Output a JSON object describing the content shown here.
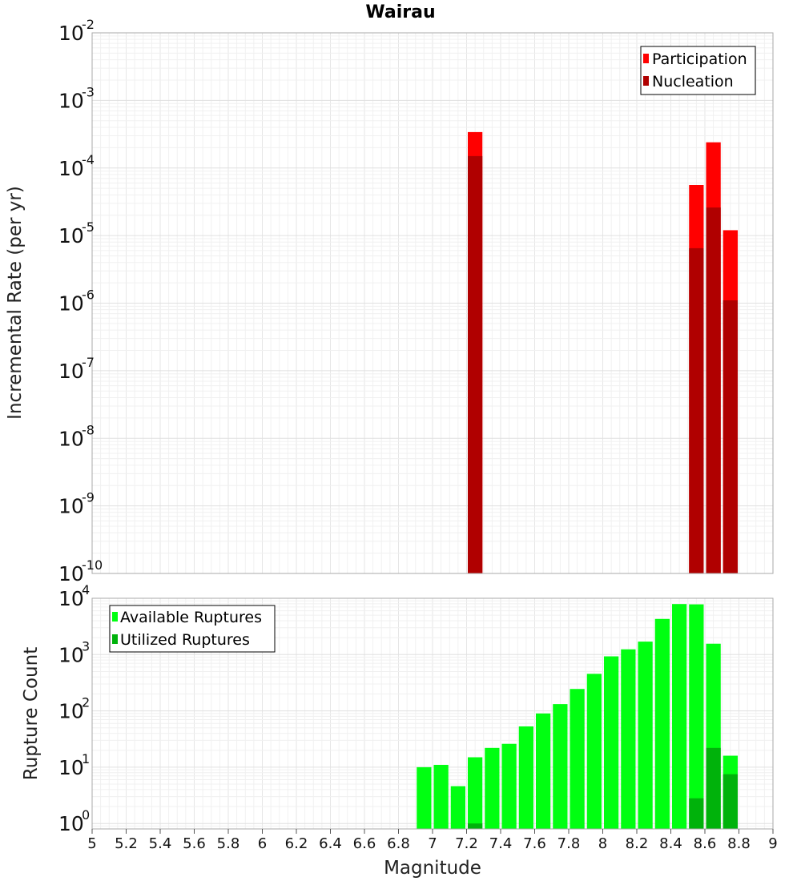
{
  "chart_data": [
    {
      "type": "bar",
      "title": "Wairau",
      "xlabel": "Magnitude",
      "ylabel": "Incremental Rate (per yr)",
      "yscale": "log",
      "ylim": [
        1e-10,
        0.01
      ],
      "xlim": [
        5,
        9
      ],
      "grid": true,
      "legend_position": "top-right",
      "bar_width": 0.1,
      "series": [
        {
          "name": "Participation",
          "color": "#ff0000",
          "x": [
            7.25,
            8.55,
            8.65,
            8.75
          ],
          "values": [
            0.00034,
            5.6e-05,
            0.00024,
            1.2e-05
          ]
        },
        {
          "name": "Nucleation",
          "color": "#b00000",
          "x": [
            7.25,
            8.55,
            8.65,
            8.75
          ],
          "values": [
            0.00015,
            6.5e-06,
            2.6e-05,
            1.1e-06
          ]
        }
      ]
    },
    {
      "type": "bar",
      "xlabel": "Magnitude",
      "ylabel": "Rupture Count",
      "yscale": "log",
      "ylim": [
        0.8,
        10000
      ],
      "xlim": [
        5,
        9
      ],
      "grid": true,
      "legend_position": "top-left",
      "bar_width": 0.1,
      "series": [
        {
          "name": "Available Ruptures",
          "color": "#00ff11",
          "x": [
            6.95,
            7.05,
            7.15,
            7.25,
            7.35,
            7.45,
            7.55,
            7.65,
            7.75,
            7.85,
            7.95,
            8.05,
            8.15,
            8.25,
            8.35,
            8.45,
            8.55,
            8.65,
            8.75
          ],
          "values": [
            10,
            11,
            4.6,
            15,
            22,
            26,
            53,
            90,
            132,
            245,
            455,
            930,
            1240,
            1700,
            4300,
            7900,
            7800,
            1560,
            16
          ]
        },
        {
          "name": "Utilized Ruptures",
          "color": "#00b20b",
          "x": [
            7.25,
            8.55,
            8.65,
            8.75
          ],
          "values": [
            1,
            2.8,
            22,
            7.5
          ]
        }
      ]
    }
  ],
  "x_ticks": [
    "5",
    "5.2",
    "5.4",
    "5.6",
    "5.8",
    "6",
    "6.2",
    "6.4",
    "6.6",
    "6.8",
    "7",
    "7.2",
    "7.4",
    "7.6",
    "7.8",
    "8",
    "8.2",
    "8.4",
    "8.6",
    "8.8",
    "9"
  ]
}
